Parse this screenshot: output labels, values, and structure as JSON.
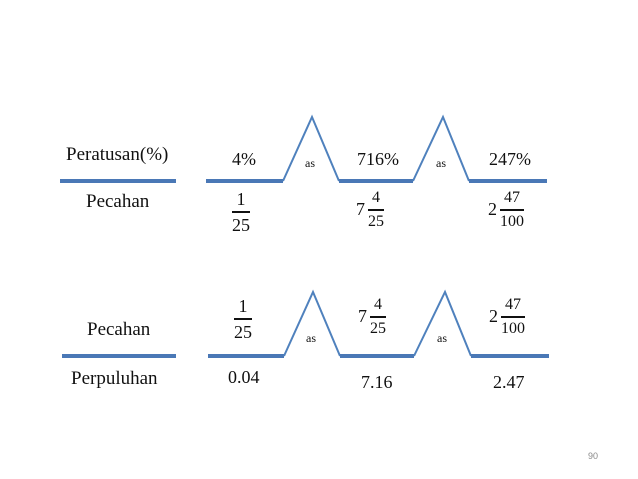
{
  "section1": {
    "top_label": "Peratusan(%)",
    "bottom_label": "Pecahan",
    "percents": [
      "4%",
      "716%",
      "247%"
    ],
    "connectors": [
      "as",
      "as"
    ],
    "fractions": [
      {
        "whole": "",
        "num": "1",
        "den": "25"
      },
      {
        "whole": "7",
        "num": "4",
        "den": "25"
      },
      {
        "whole": "2",
        "num": "47",
        "den": "100"
      }
    ]
  },
  "section2": {
    "top_label": "Pecahan",
    "bottom_label": "Perpuluhan",
    "fractions": [
      {
        "whole": "",
        "num": "1",
        "den": "25"
      },
      {
        "whole": "7",
        "num": "4",
        "den": "25"
      },
      {
        "whole": "2",
        "num": "47",
        "den": "100"
      }
    ],
    "connectors": [
      "as",
      "as"
    ],
    "decimals": [
      "0.04",
      "7.16",
      "2.47"
    ]
  },
  "page_number": "90",
  "colors": {
    "rule": "#4a78b6",
    "connector": "#4f81bd"
  }
}
